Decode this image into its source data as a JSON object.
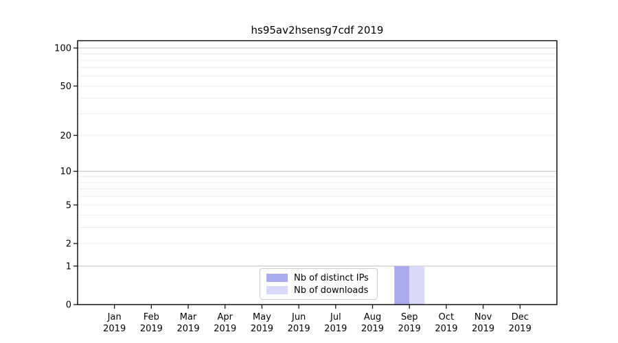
{
  "chart_data": {
    "type": "bar",
    "title": "hs95av2hsensg7cdf 2019",
    "categories": [
      "Jan",
      "Feb",
      "Mar",
      "Apr",
      "May",
      "Jun",
      "Jul",
      "Aug",
      "Sep",
      "Oct",
      "Nov",
      "Dec"
    ],
    "year_label": "2019",
    "series": [
      {
        "name": "Nb of distinct IPs",
        "color": "#aaaaee",
        "values": [
          0,
          0,
          0,
          0,
          0,
          0,
          0,
          0,
          1,
          0,
          0,
          0
        ]
      },
      {
        "name": "Nb of downloads",
        "color": "#d8d8f8",
        "values": [
          0,
          0,
          0,
          0,
          0,
          0,
          0,
          0,
          1,
          0,
          0,
          0
        ]
      }
    ],
    "y_scale": "log1p",
    "ylim": [
      0,
      114
    ],
    "y_ticks": [
      0,
      1,
      2,
      5,
      10,
      20,
      50,
      100
    ],
    "y_tick_labels": [
      "0",
      "1",
      "2",
      "5",
      "10",
      "20",
      "50",
      "100"
    ],
    "y_major_gridlines": [
      1,
      10,
      100
    ],
    "y_minor_gridlines": [
      2,
      3,
      4,
      5,
      6,
      7,
      8,
      9,
      20,
      30,
      40,
      50,
      60,
      70,
      80,
      90
    ],
    "grid": true,
    "legend_position": "lower center",
    "xlabel": "",
    "ylabel": "",
    "colors": {
      "major_gridline": "#c0c0c0",
      "minor_gridline": "#ebebeb",
      "spine": "#000000",
      "tick_label": "#000000"
    }
  }
}
